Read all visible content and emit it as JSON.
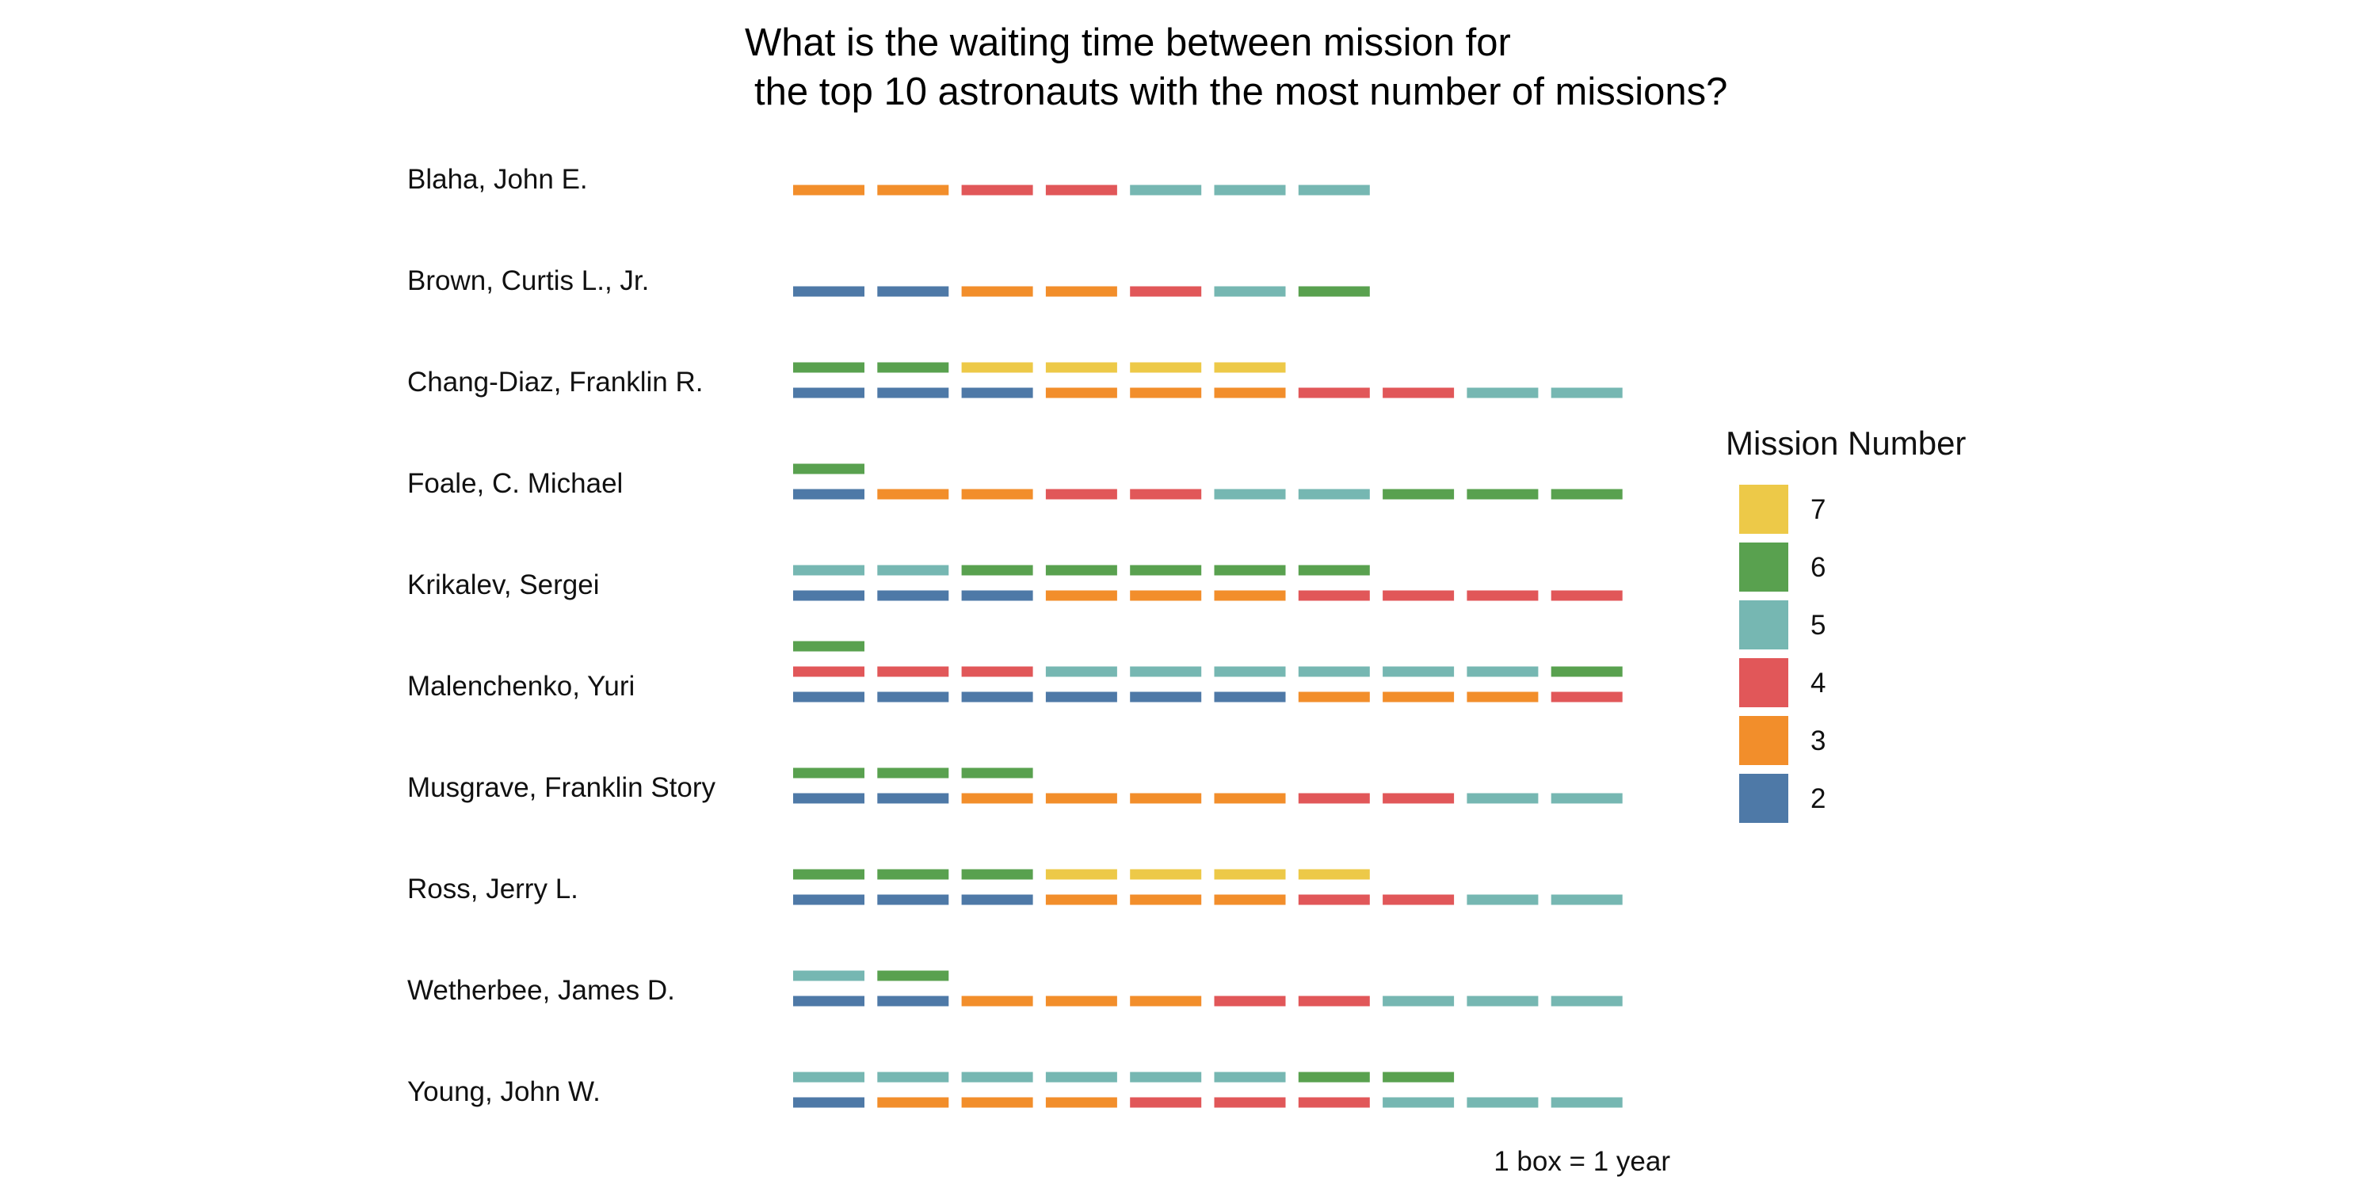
{
  "chart_data": {
    "type": "waffle",
    "title": "What is the waiting time between mission for\n the top 10 astronauts with the most number of missions?",
    "caption": "1 box = 1 year",
    "legend": {
      "title": "Mission Number",
      "placement": "right",
      "items": [
        {
          "label": "7",
          "mission": 7,
          "color": "#EDC948"
        },
        {
          "label": "6",
          "mission": 6,
          "color": "#59A14F"
        },
        {
          "label": "5",
          "mission": 5,
          "color": "#76B7B2"
        },
        {
          "label": "4",
          "mission": 4,
          "color": "#E15759"
        },
        {
          "label": "3",
          "mission": 3,
          "color": "#F28E2B"
        },
        {
          "label": "2",
          "mission": 2,
          "color": "#4E79A7"
        }
      ]
    },
    "astronauts": [
      {
        "name": "Blaha, John E.",
        "years": {
          "3": 2,
          "4": 2,
          "5": 3
        }
      },
      {
        "name": "Brown, Curtis L., Jr.",
        "years": {
          "2": 2,
          "3": 2,
          "4": 1,
          "5": 1,
          "6": 1
        }
      },
      {
        "name": "Chang-Diaz, Franklin R.",
        "years": {
          "2": 3,
          "3": 3,
          "4": 2,
          "5": 2,
          "6": 2,
          "7": 4
        }
      },
      {
        "name": "Foale, C. Michael",
        "years": {
          "2": 1,
          "3": 2,
          "4": 2,
          "5": 2,
          "6": 4
        }
      },
      {
        "name": "Krikalev, Sergei",
        "years": {
          "2": 3,
          "3": 3,
          "4": 4,
          "5": 2,
          "6": 5
        }
      },
      {
        "name": "Malenchenko, Yuri",
        "years": {
          "2": 6,
          "3": 3,
          "4": 4,
          "5": 6,
          "6": 2
        }
      },
      {
        "name": "Musgrave, Franklin Story",
        "years": {
          "2": 2,
          "3": 4,
          "4": 2,
          "5": 2,
          "6": 3
        }
      },
      {
        "name": "Ross, Jerry L.",
        "years": {
          "2": 3,
          "3": 3,
          "4": 2,
          "5": 2,
          "6": 3,
          "7": 4
        }
      },
      {
        "name": "Wetherbee, James D.",
        "years": {
          "2": 2,
          "3": 3,
          "4": 2,
          "5": 4,
          "6": 1
        }
      },
      {
        "name": "Young, John W.",
        "years": {
          "2": 1,
          "3": 3,
          "4": 3,
          "5": 9,
          "6": 2
        }
      }
    ]
  }
}
